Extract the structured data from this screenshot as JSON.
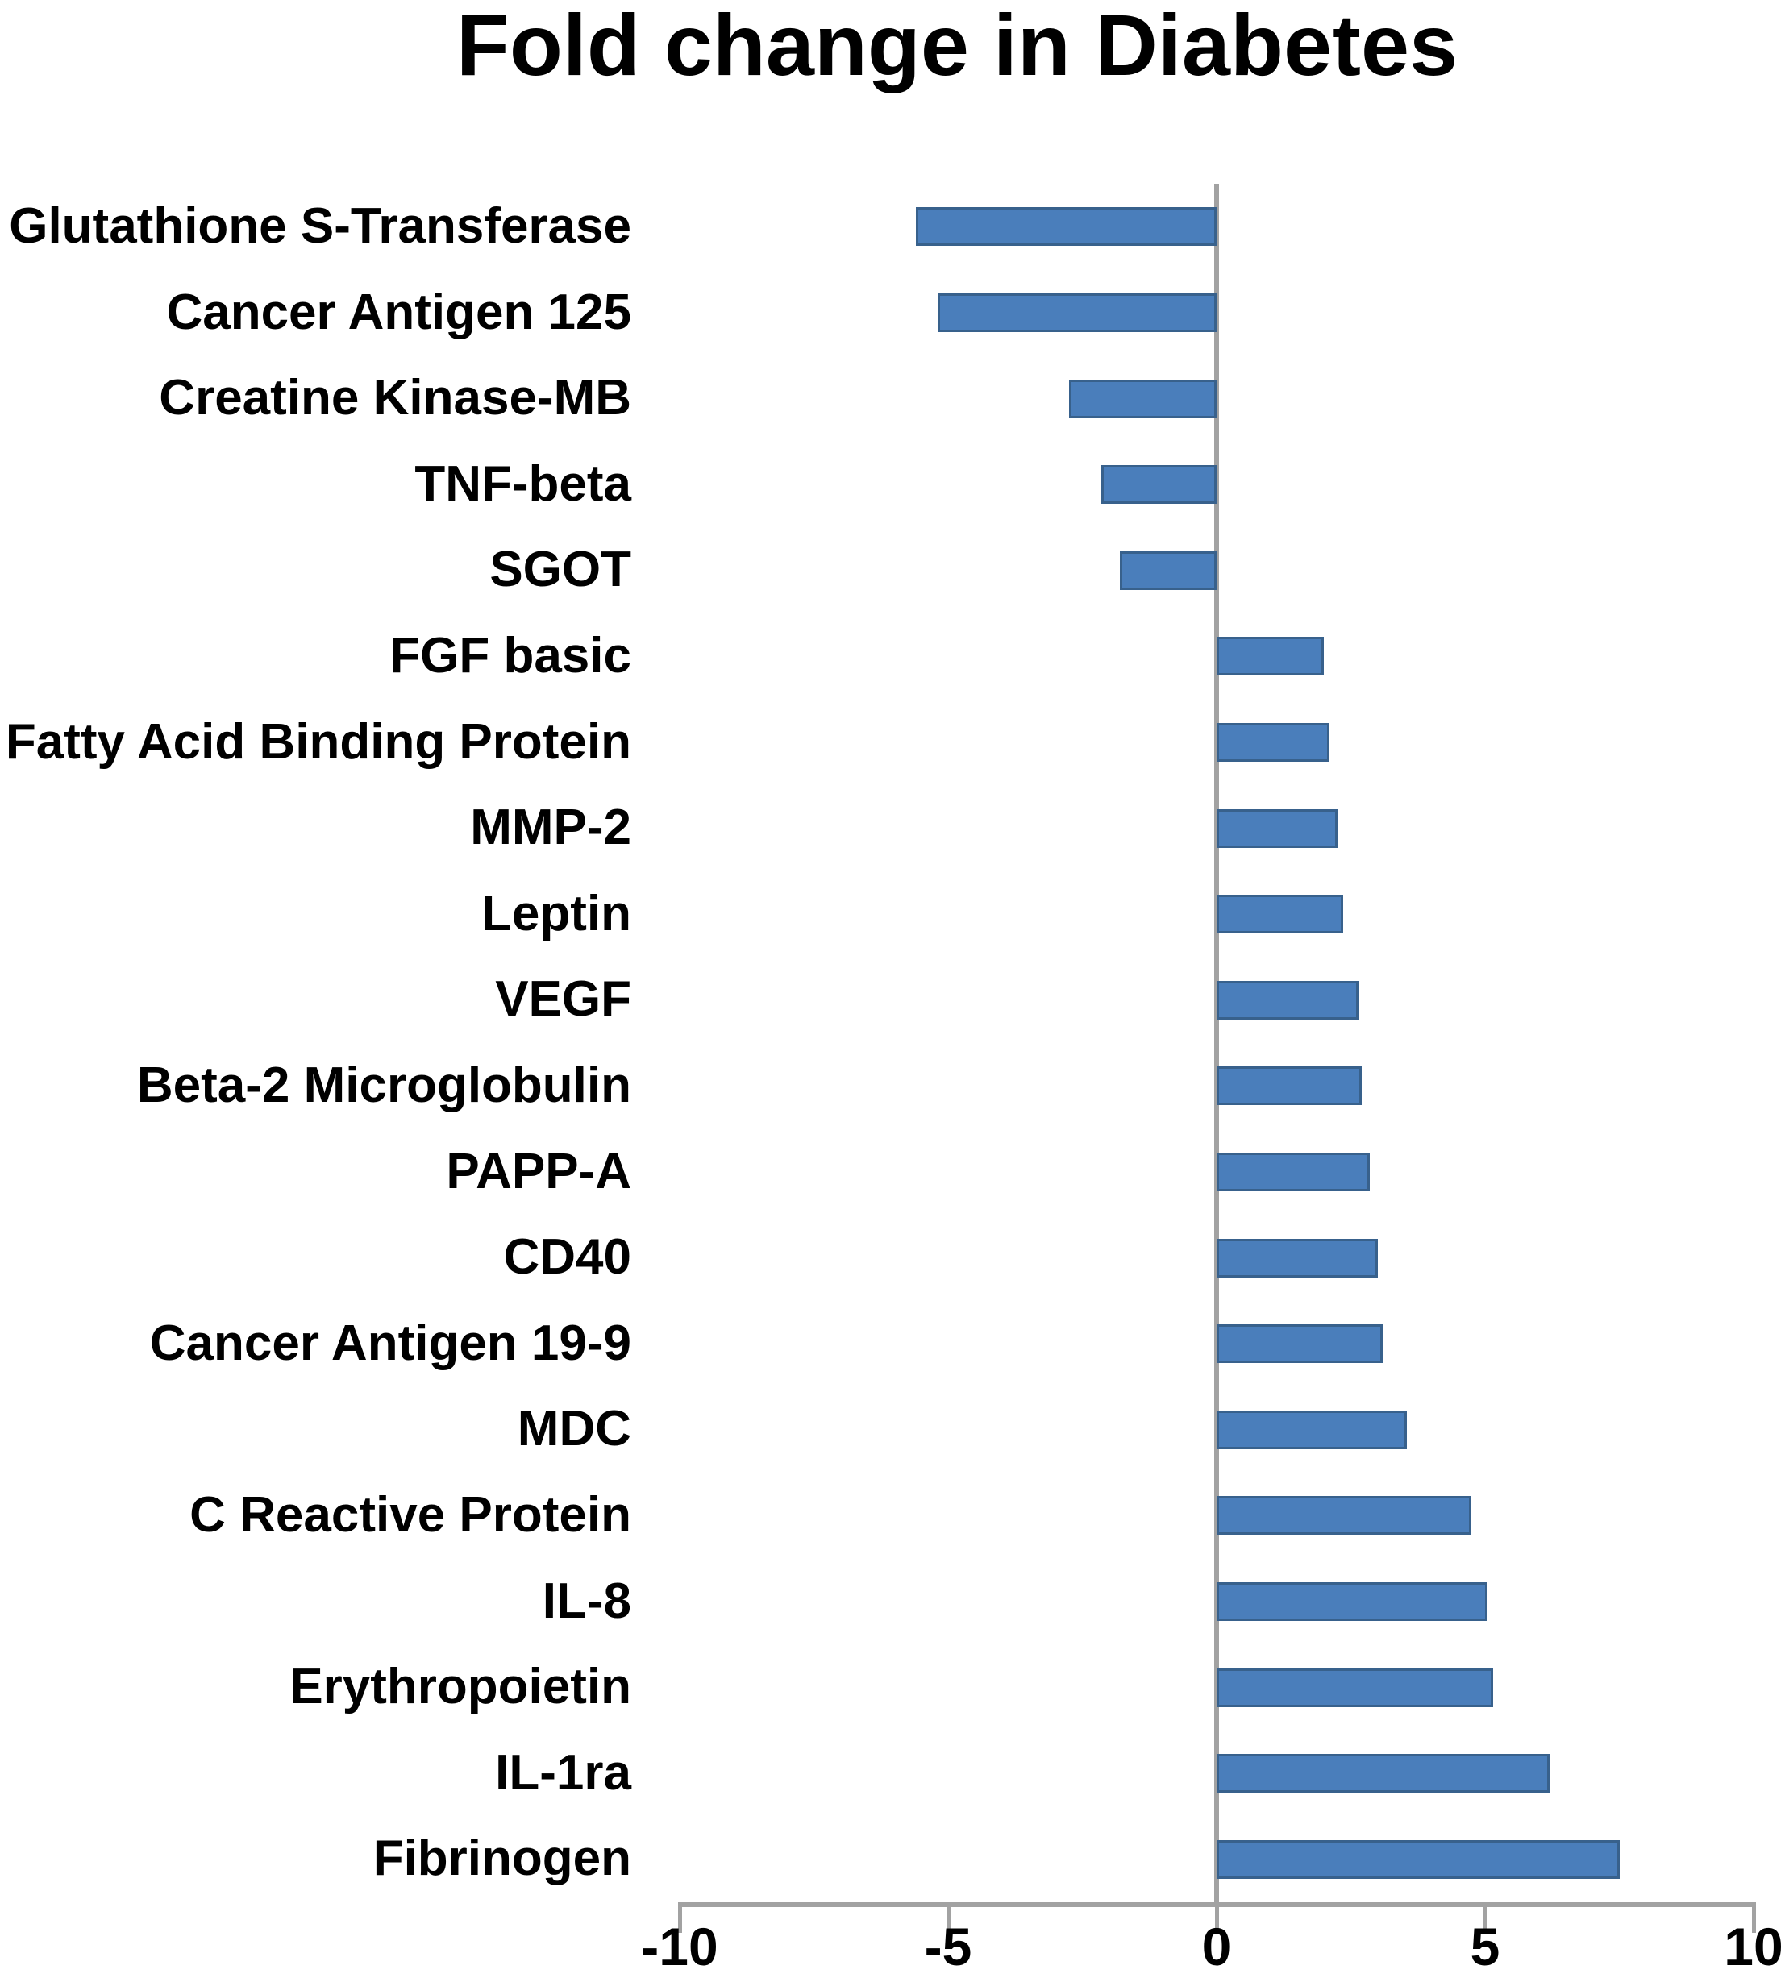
{
  "title": "Fold change in Diabetes",
  "chart_data": {
    "type": "bar",
    "orientation": "horizontal",
    "title": "Fold change in Diabetes",
    "categories": [
      "Glutathione S-Transferase",
      "Cancer Antigen 125",
      "Creatine Kinase-MB",
      "TNF-beta",
      "SGOT",
      "FGF basic",
      "Fatty Acid Binding Protein",
      "MMP-2",
      "Leptin",
      "VEGF",
      "Beta-2 Microglobulin",
      "PAPP-A",
      "CD40",
      "Cancer Antigen 19-9",
      "MDC",
      "C Reactive Protein",
      "IL-8",
      "Erythropoietin",
      "IL-1ra",
      "Fibrinogen"
    ],
    "values": [
      -5.6,
      -5.2,
      -2.75,
      -2.15,
      -1.8,
      2.0,
      2.1,
      2.25,
      2.35,
      2.65,
      2.7,
      2.85,
      3.0,
      3.1,
      3.55,
      4.75,
      5.05,
      5.15,
      6.2,
      7.5
    ],
    "xlabel": "",
    "ylabel": "",
    "xlim": [
      -10,
      10
    ],
    "x_ticks": [
      -10,
      -5,
      0,
      5,
      10
    ],
    "grid": false,
    "legend": null,
    "bar_color": "#4a7ebb",
    "bar_border_color": "#38618c",
    "axis_color": "#a2a2a2",
    "text_color": "#000000"
  }
}
